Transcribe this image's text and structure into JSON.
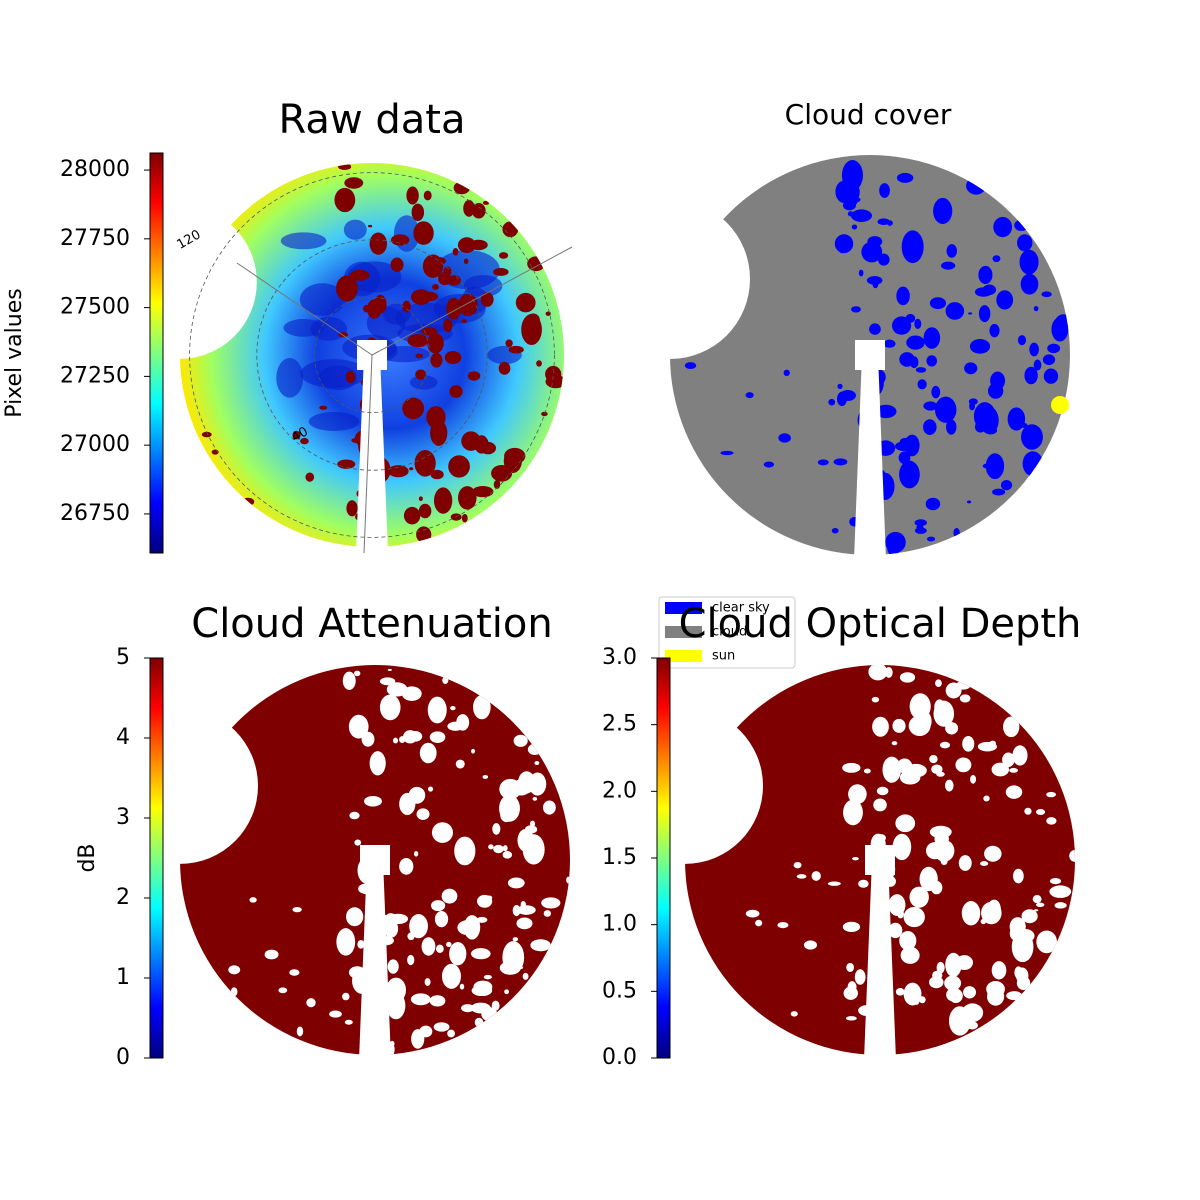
{
  "chart_data": [
    {
      "type": "image",
      "title": "Raw data",
      "colormap": "jet",
      "colorbar_label": "Pixel values",
      "clim": [
        26608,
        28062
      ],
      "cticks": [
        26750,
        27000,
        27250,
        27500,
        27750,
        28000
      ],
      "annotations": [
        "120",
        "40"
      ]
    },
    {
      "type": "image",
      "title": "Cloud cover",
      "series": [
        {
          "name": "clear sky",
          "color": "#0000ff"
        },
        {
          "name": "cloud",
          "color": "#808080"
        },
        {
          "name": "sun",
          "color": "#ffff00"
        }
      ]
    },
    {
      "type": "image",
      "title": "Cloud Attenuation",
      "colormap": "jet",
      "colorbar_label": "dB",
      "clim": [
        0,
        5
      ],
      "cticks": [
        0,
        1,
        2,
        3,
        4,
        5
      ]
    },
    {
      "type": "image",
      "title": "Cloud Optical Depth",
      "colormap": "jet",
      "clim": [
        0,
        3
      ],
      "cticks": [
        {
          "value": 0,
          "label": "0.0"
        },
        {
          "value": 0.5,
          "label": "0.5"
        },
        {
          "value": 1,
          "label": "1.0"
        },
        {
          "value": 1.5,
          "label": "1.5"
        },
        {
          "value": 2,
          "label": "2.0"
        },
        {
          "value": 2.5,
          "label": "2.5"
        },
        {
          "value": 3,
          "label": "3.0"
        }
      ]
    }
  ]
}
